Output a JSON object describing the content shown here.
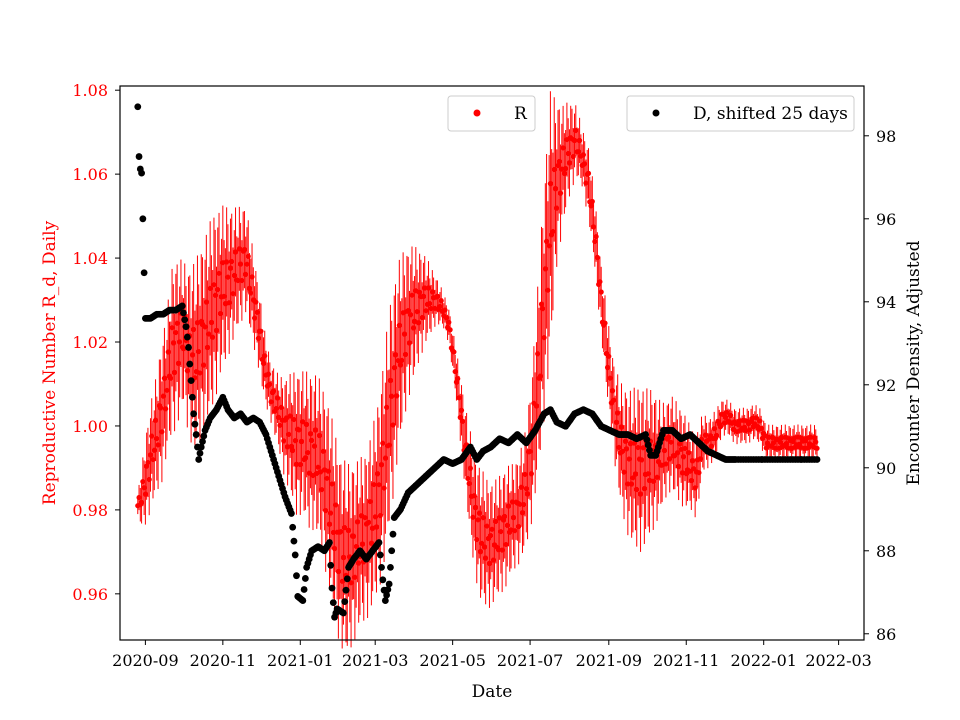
{
  "chart_data": {
    "type": "scatter",
    "xlabel": "Date",
    "ylabel_left": "Reproductive Number R_d, Daily",
    "ylabel_right": "Encounter Density, Adjusted",
    "x_tick_labels": [
      "2020-09",
      "2020-11",
      "2021-01",
      "2021-03",
      "2021-05",
      "2021-07",
      "2021-09",
      "2021-11",
      "2022-01",
      "2022-03"
    ],
    "x_tick_dates": [
      "2020-09-01",
      "2020-11-01",
      "2021-01-01",
      "2021-03-01",
      "2021-05-01",
      "2021-07-01",
      "2021-09-01",
      "2021-11-01",
      "2022-01-01",
      "2022-03-01"
    ],
    "xlim": [
      "2020-08-12",
      "2022-03-21"
    ],
    "y_left_ticks": [
      "0.96",
      "0.98",
      "1.00",
      "1.02",
      "1.04",
      "1.06",
      "1.08"
    ],
    "y_left_tick_values": [
      0.96,
      0.98,
      1.0,
      1.02,
      1.04,
      1.06,
      1.08
    ],
    "ylim_left": [
      0.949,
      1.081
    ],
    "y_right_ticks": [
      "86",
      "88",
      "90",
      "92",
      "94",
      "96",
      "98"
    ],
    "y_right_tick_values": [
      86,
      88,
      90,
      92,
      94,
      96,
      98
    ],
    "ylim_right": [
      85.85,
      99.2
    ],
    "colors": {
      "R": "#ff0000",
      "D": "#000000",
      "left_axis": "#ff0000",
      "right_axis": "#000000"
    },
    "legend": [
      {
        "label": "R",
        "color": "#ff0000",
        "placement": "top-center"
      },
      {
        "label": "D, shifted 25 days",
        "color": "#000000",
        "placement": "top-right"
      }
    ],
    "series": [
      {
        "name": "R",
        "axis": "left",
        "style": "points with vertical error bars",
        "points": [
          [
            "2020-08-26",
            0.981,
            0.002
          ],
          [
            "2020-08-29",
            0.983,
            0.005
          ],
          [
            "2020-09-02",
            0.988,
            0.008
          ],
          [
            "2020-09-06",
            0.994,
            0.009
          ],
          [
            "2020-09-10",
            0.998,
            0.01
          ],
          [
            "2020-09-14",
            1.004,
            0.012
          ],
          [
            "2020-09-18",
            1.01,
            0.012
          ],
          [
            "2020-09-22",
            1.018,
            0.014
          ],
          [
            "2020-09-26",
            1.02,
            0.014
          ],
          [
            "2020-10-01",
            1.022,
            0.012
          ],
          [
            "2020-10-05",
            1.018,
            0.014
          ],
          [
            "2020-10-10",
            1.016,
            0.016
          ],
          [
            "2020-10-15",
            1.02,
            0.016
          ],
          [
            "2020-10-20",
            1.024,
            0.016
          ],
          [
            "2020-10-25",
            1.028,
            0.016
          ],
          [
            "2020-10-30",
            1.032,
            0.014
          ],
          [
            "2020-11-04",
            1.034,
            0.013
          ],
          [
            "2020-11-09",
            1.036,
            0.011
          ],
          [
            "2020-11-14",
            1.038,
            0.01
          ],
          [
            "2020-11-19",
            1.04,
            0.009
          ],
          [
            "2020-11-24",
            1.032,
            0.008
          ],
          [
            "2020-11-29",
            1.024,
            0.007
          ],
          [
            "2020-12-04",
            1.014,
            0.006
          ],
          [
            "2020-12-09",
            1.008,
            0.005
          ],
          [
            "2020-12-14",
            1.004,
            0.006
          ],
          [
            "2020-12-19",
            1.0,
            0.008
          ],
          [
            "2020-12-24",
            0.998,
            0.01
          ],
          [
            "2020-12-29",
            0.996,
            0.012
          ],
          [
            "2021-01-03",
            0.996,
            0.012
          ],
          [
            "2021-01-08",
            0.994,
            0.013
          ],
          [
            "2021-01-13",
            0.994,
            0.013
          ],
          [
            "2021-01-18",
            0.99,
            0.014
          ],
          [
            "2021-01-23",
            0.984,
            0.015
          ],
          [
            "2021-01-28",
            0.976,
            0.016
          ],
          [
            "2021-02-02",
            0.97,
            0.016
          ],
          [
            "2021-02-07",
            0.968,
            0.016
          ],
          [
            "2021-02-12",
            0.97,
            0.015
          ],
          [
            "2021-02-17",
            0.972,
            0.014
          ],
          [
            "2021-02-22",
            0.974,
            0.014
          ],
          [
            "2021-02-27",
            0.978,
            0.015
          ],
          [
            "2021-03-04",
            0.984,
            0.016
          ],
          [
            "2021-03-09",
            0.994,
            0.018
          ],
          [
            "2021-03-14",
            1.006,
            0.018
          ],
          [
            "2021-03-19",
            1.016,
            0.016
          ],
          [
            "2021-03-24",
            1.022,
            0.014
          ],
          [
            "2021-03-29",
            1.026,
            0.012
          ],
          [
            "2021-04-03",
            1.028,
            0.01
          ],
          [
            "2021-04-08",
            1.03,
            0.008
          ],
          [
            "2021-04-13",
            1.03,
            0.006
          ],
          [
            "2021-04-18",
            1.03,
            0.004
          ],
          [
            "2021-04-23",
            1.028,
            0.003
          ],
          [
            "2021-04-28",
            1.024,
            0.003
          ],
          [
            "2021-05-03",
            1.014,
            0.004
          ],
          [
            "2021-05-08",
            1.002,
            0.006
          ],
          [
            "2021-05-13",
            0.99,
            0.008
          ],
          [
            "2021-05-18",
            0.98,
            0.01
          ],
          [
            "2021-05-23",
            0.974,
            0.011
          ],
          [
            "2021-05-28",
            0.972,
            0.011
          ],
          [
            "2021-06-02",
            0.972,
            0.01
          ],
          [
            "2021-06-07",
            0.974,
            0.01
          ],
          [
            "2021-06-12",
            0.976,
            0.01
          ],
          [
            "2021-06-17",
            0.978,
            0.009
          ],
          [
            "2021-06-22",
            0.98,
            0.009
          ],
          [
            "2021-06-27",
            0.984,
            0.01
          ],
          [
            "2021-07-02",
            0.994,
            0.012
          ],
          [
            "2021-07-07",
            1.01,
            0.016
          ],
          [
            "2021-07-12",
            1.03,
            0.02
          ],
          [
            "2021-07-17",
            1.048,
            0.022
          ],
          [
            "2021-07-22",
            1.058,
            0.014
          ],
          [
            "2021-07-27",
            1.062,
            0.01
          ],
          [
            "2021-08-01",
            1.066,
            0.008
          ],
          [
            "2021-08-06",
            1.068,
            0.006
          ],
          [
            "2021-08-11",
            1.064,
            0.005
          ],
          [
            "2021-08-16",
            1.058,
            0.006
          ],
          [
            "2021-08-21",
            1.046,
            0.006
          ],
          [
            "2021-08-26",
            1.03,
            0.006
          ],
          [
            "2021-08-31",
            1.016,
            0.007
          ],
          [
            "2021-09-05",
            1.004,
            0.008
          ],
          [
            "2021-09-10",
            0.996,
            0.01
          ],
          [
            "2021-09-15",
            0.992,
            0.012
          ],
          [
            "2021-09-20",
            0.99,
            0.013
          ],
          [
            "2021-09-25",
            0.99,
            0.014
          ],
          [
            "2021-09-30",
            0.99,
            0.013
          ],
          [
            "2021-10-05",
            0.992,
            0.012
          ],
          [
            "2021-10-10",
            0.992,
            0.01
          ],
          [
            "2021-10-15",
            0.994,
            0.008
          ],
          [
            "2021-10-20",
            0.996,
            0.008
          ],
          [
            "2021-10-25",
            0.994,
            0.008
          ],
          [
            "2021-10-30",
            0.992,
            0.008
          ],
          [
            "2021-11-04",
            0.99,
            0.007
          ],
          [
            "2021-11-09",
            0.988,
            0.007
          ],
          [
            "2021-11-14",
            0.996,
            0.005
          ],
          [
            "2021-11-19",
            0.996,
            0.004
          ],
          [
            "2021-11-24",
            0.998,
            0.004
          ],
          [
            "2021-11-29",
            1.002,
            0.003
          ],
          [
            "2021-12-04",
            1.002,
            0.003
          ],
          [
            "2021-12-09",
            1.0,
            0.003
          ],
          [
            "2021-12-14",
            1.0,
            0.003
          ],
          [
            "2021-12-19",
            1.0,
            0.003
          ],
          [
            "2021-12-24",
            1.001,
            0.003
          ],
          [
            "2021-12-29",
            1.0,
            0.003
          ],
          [
            "2022-01-03",
            0.996,
            0.003
          ],
          [
            "2022-01-08",
            0.996,
            0.003
          ],
          [
            "2022-01-13",
            0.996,
            0.003
          ],
          [
            "2022-01-18",
            0.996,
            0.003
          ],
          [
            "2022-01-23",
            0.996,
            0.003
          ],
          [
            "2022-01-28",
            0.996,
            0.003
          ],
          [
            "2022-02-02",
            0.996,
            0.003
          ],
          [
            "2022-02-07",
            0.996,
            0.003
          ],
          [
            "2022-02-12",
            0.996,
            0.003
          ]
        ]
      },
      {
        "name": "D, shifted 25 days",
        "axis": "right",
        "style": "points",
        "points": [
          [
            "2020-08-26",
            98.7
          ],
          [
            "2020-08-27",
            97.5
          ],
          [
            "2020-08-28",
            97.2
          ],
          [
            "2020-08-29",
            97.1
          ],
          [
            "2020-08-30",
            96.0
          ],
          [
            "2020-08-31",
            94.7
          ],
          [
            "2020-09-01",
            93.6
          ],
          [
            "2020-09-05",
            93.6
          ],
          [
            "2020-09-10",
            93.7
          ],
          [
            "2020-09-15",
            93.7
          ],
          [
            "2020-09-20",
            93.8
          ],
          [
            "2020-09-25",
            93.8
          ],
          [
            "2020-09-30",
            93.9
          ],
          [
            "2020-10-03",
            93.4
          ],
          [
            "2020-10-05",
            92.9
          ],
          [
            "2020-10-07",
            92.1
          ],
          [
            "2020-10-09",
            91.3
          ],
          [
            "2020-10-11",
            90.8
          ],
          [
            "2020-10-13",
            90.2
          ],
          [
            "2020-10-15",
            90.5
          ],
          [
            "2020-10-18",
            90.9
          ],
          [
            "2020-10-22",
            91.2
          ],
          [
            "2020-10-27",
            91.4
          ],
          [
            "2020-11-01",
            91.7
          ],
          [
            "2020-11-05",
            91.4
          ],
          [
            "2020-11-10",
            91.2
          ],
          [
            "2020-11-15",
            91.3
          ],
          [
            "2020-11-20",
            91.1
          ],
          [
            "2020-11-25",
            91.2
          ],
          [
            "2020-11-30",
            91.1
          ],
          [
            "2020-12-05",
            90.8
          ],
          [
            "2020-12-10",
            90.3
          ],
          [
            "2020-12-15",
            89.8
          ],
          [
            "2020-12-20",
            89.3
          ],
          [
            "2020-12-25",
            88.9
          ],
          [
            "2020-12-28",
            87.9
          ],
          [
            "2020-12-30",
            86.9
          ],
          [
            "2021-01-03",
            86.8
          ],
          [
            "2021-01-06",
            87.6
          ],
          [
            "2021-01-10",
            88.0
          ],
          [
            "2021-01-15",
            88.1
          ],
          [
            "2021-01-20",
            88.0
          ],
          [
            "2021-01-24",
            88.2
          ],
          [
            "2021-01-26",
            87.1
          ],
          [
            "2021-01-28",
            86.4
          ],
          [
            "2021-01-30",
            86.6
          ],
          [
            "2021-02-04",
            86.5
          ],
          [
            "2021-02-08",
            87.6
          ],
          [
            "2021-02-12",
            87.8
          ],
          [
            "2021-02-17",
            88.0
          ],
          [
            "2021-02-22",
            87.8
          ],
          [
            "2021-02-27",
            88.0
          ],
          [
            "2021-03-04",
            88.2
          ],
          [
            "2021-03-07",
            87.3
          ],
          [
            "2021-03-09",
            86.8
          ],
          [
            "2021-03-12",
            87.2
          ],
          [
            "2021-03-16",
            88.8
          ],
          [
            "2021-03-21",
            89.0
          ],
          [
            "2021-03-27",
            89.4
          ],
          [
            "2021-04-03",
            89.6
          ],
          [
            "2021-04-10",
            89.8
          ],
          [
            "2021-04-17",
            90.0
          ],
          [
            "2021-04-24",
            90.2
          ],
          [
            "2021-05-01",
            90.1
          ],
          [
            "2021-05-08",
            90.2
          ],
          [
            "2021-05-15",
            90.5
          ],
          [
            "2021-05-20",
            90.2
          ],
          [
            "2021-05-25",
            90.4
          ],
          [
            "2021-05-31",
            90.5
          ],
          [
            "2021-06-07",
            90.7
          ],
          [
            "2021-06-14",
            90.6
          ],
          [
            "2021-06-21",
            90.8
          ],
          [
            "2021-06-28",
            90.6
          ],
          [
            "2021-07-05",
            90.9
          ],
          [
            "2021-07-12",
            91.3
          ],
          [
            "2021-07-17",
            91.4
          ],
          [
            "2021-07-22",
            91.1
          ],
          [
            "2021-07-29",
            91.0
          ],
          [
            "2021-08-05",
            91.3
          ],
          [
            "2021-08-12",
            91.4
          ],
          [
            "2021-08-19",
            91.3
          ],
          [
            "2021-08-26",
            91.0
          ],
          [
            "2021-09-02",
            90.9
          ],
          [
            "2021-09-09",
            90.8
          ],
          [
            "2021-09-16",
            90.8
          ],
          [
            "2021-09-23",
            90.7
          ],
          [
            "2021-09-30",
            90.8
          ],
          [
            "2021-10-04",
            90.3
          ],
          [
            "2021-10-08",
            90.3
          ],
          [
            "2021-10-14",
            90.9
          ],
          [
            "2021-10-21",
            90.9
          ],
          [
            "2021-10-28",
            90.7
          ],
          [
            "2021-11-04",
            90.8
          ],
          [
            "2021-11-11",
            90.6
          ],
          [
            "2021-11-18",
            90.4
          ],
          [
            "2021-11-25",
            90.3
          ],
          [
            "2021-12-02",
            90.2
          ],
          [
            "2021-12-10",
            90.2
          ],
          [
            "2021-12-20",
            90.2
          ],
          [
            "2021-12-31",
            90.2
          ],
          [
            "2022-01-10",
            90.2
          ],
          [
            "2022-01-20",
            90.2
          ],
          [
            "2022-01-31",
            90.2
          ],
          [
            "2022-02-12",
            90.2
          ]
        ]
      }
    ]
  }
}
